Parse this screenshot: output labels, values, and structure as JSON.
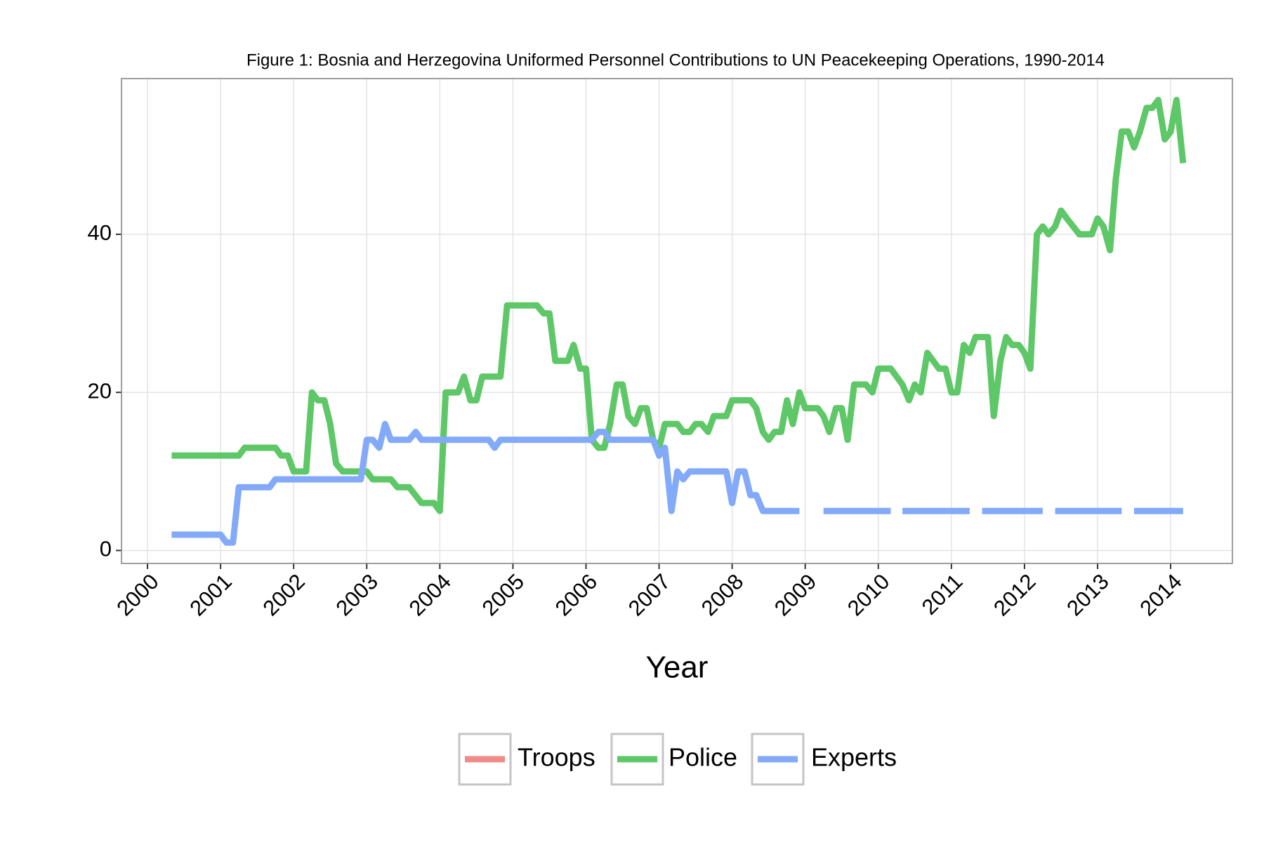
{
  "chart_data": {
    "type": "line",
    "title": "Figure 1: Bosnia and Herzegovina Uniformed Personnel Contributions to UN Peacekeeping Operations, 1990-2014",
    "x_label": "Year",
    "xlim": [
      1999.644,
      2014.845
    ],
    "ylim": [
      -1.64,
      59.7
    ],
    "xticks": [
      2000,
      2001,
      2002,
      2003,
      2004,
      2005,
      2006,
      2007,
      2008,
      2009,
      2010,
      2011,
      2012,
      2013,
      2014
    ],
    "yticks": [
      0,
      20,
      40
    ],
    "grid": true,
    "legend": "bottom",
    "series": [
      {
        "name": "Troops",
        "color": "#f08b87",
        "x": [],
        "values": []
      },
      {
        "name": "Police",
        "color": "#5ec767",
        "x": [
          2000.33,
          2001.25,
          2001.33,
          2001.75,
          2001.83,
          2001.92,
          2002.0,
          2002.17,
          2002.25,
          2002.33,
          2002.42,
          2002.5,
          2002.58,
          2002.67,
          2003.0,
          2003.08,
          2003.33,
          2003.42,
          2003.58,
          2003.75,
          2003.92,
          2004.0,
          2004.08,
          2004.25,
          2004.33,
          2004.42,
          2004.5,
          2004.58,
          2004.83,
          2004.92,
          2005.33,
          2005.42,
          2005.5,
          2005.58,
          2005.75,
          2005.83,
          2005.92,
          2006.0,
          2006.08,
          2006.17,
          2006.25,
          2006.33,
          2006.42,
          2006.5,
          2006.58,
          2006.67,
          2006.75,
          2006.83,
          2006.92,
          2007.0,
          2007.08,
          2007.25,
          2007.33,
          2007.42,
          2007.5,
          2007.58,
          2007.67,
          2007.75,
          2007.92,
          2008.0,
          2008.25,
          2008.33,
          2008.42,
          2008.5,
          2008.58,
          2008.67,
          2008.75,
          2008.83,
          2008.92,
          2009.0,
          2009.17,
          2009.25,
          2009.33,
          2009.42,
          2009.5,
          2009.58,
          2009.67,
          2009.83,
          2009.92,
          2010.0,
          2010.17,
          2010.25,
          2010.33,
          2010.42,
          2010.5,
          2010.58,
          2010.67,
          2010.75,
          2010.83,
          2010.92,
          2011.0,
          2011.08,
          2011.17,
          2011.25,
          2011.33,
          2011.5,
          2011.58,
          2011.67,
          2011.75,
          2011.83,
          2011.92,
          2012.0,
          2012.08,
          2012.17,
          2012.25,
          2012.33,
          2012.42,
          2012.5,
          2012.58,
          2012.75,
          2012.92,
          2013.0,
          2013.08,
          2013.17,
          2013.25,
          2013.33,
          2013.42,
          2013.5,
          2013.58,
          2013.67,
          2013.75,
          2013.83,
          2013.92,
          2014.0,
          2014.08,
          2014.17
        ],
        "values": [
          12,
          12,
          13,
          13,
          12,
          12,
          10,
          10,
          20,
          19,
          19,
          16,
          11,
          10,
          10,
          9,
          9,
          8,
          8,
          6,
          6,
          5,
          20,
          20,
          22,
          19,
          19,
          22,
          22,
          31,
          31,
          30,
          30,
          24,
          24,
          26,
          23,
          23,
          14,
          13,
          13,
          16,
          21,
          21,
          17,
          16,
          18,
          18,
          14,
          13,
          16,
          16,
          15,
          15,
          16,
          16,
          15,
          17,
          17,
          19,
          19,
          18,
          15,
          14,
          15,
          15,
          19,
          16,
          20,
          18,
          18,
          17,
          15,
          18,
          18,
          14,
          21,
          21,
          20,
          23,
          23,
          22,
          21,
          19,
          21,
          20,
          25,
          24,
          23,
          23,
          20,
          20,
          26,
          25,
          27,
          27,
          17,
          24,
          27,
          26,
          26,
          25,
          23,
          40,
          41,
          40,
          41,
          43,
          42,
          40,
          40,
          42,
          41,
          38,
          47,
          53,
          53,
          51,
          53,
          56,
          56,
          57,
          52,
          53,
          57,
          49
        ]
      },
      {
        "name": "Experts",
        "color": "#83a9f9",
        "x": [
          2000.33,
          2001.0,
          2001.08,
          2001.17,
          2001.25,
          2001.67,
          2001.75,
          2002.92,
          2003.0,
          2003.08,
          2003.17,
          2003.25,
          2003.33,
          2003.58,
          2003.67,
          2003.75,
          2004.67,
          2004.75,
          2004.83,
          2006.08,
          2006.17,
          2006.25,
          2006.33,
          2006.92,
          2007.0,
          2007.08,
          2007.17,
          2007.25,
          2007.33,
          2007.42,
          2007.92,
          2008.0,
          2008.08,
          2008.17,
          2008.25,
          2008.33,
          2008.42,
          2008.92,
          2009.08,
          2009.25,
          2010.17,
          2010.25,
          2010.33,
          2011.25,
          2011.33,
          2011.42,
          2012.25,
          2012.33,
          2012.42,
          2013.33,
          2013.42,
          2013.5,
          2014.17
        ],
        "values": [
          2,
          2,
          1,
          1,
          8,
          8,
          9,
          9,
          14,
          14,
          13,
          16,
          14,
          14,
          15,
          14,
          14,
          13,
          14,
          14,
          15,
          15,
          14,
          14,
          12,
          13,
          5,
          10,
          9,
          10,
          10,
          6,
          10,
          10,
          7,
          7,
          5,
          5,
          null,
          5,
          5,
          null,
          5,
          5,
          null,
          5,
          5,
          null,
          5,
          5,
          null,
          5,
          5
        ]
      }
    ]
  }
}
